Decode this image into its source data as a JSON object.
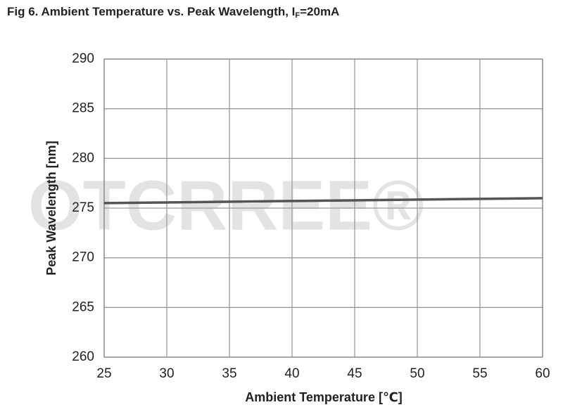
{
  "chart_data": {
    "type": "line",
    "title": [
      "Fig 6. Ambient Temperature vs. Peak Wavelength, I",
      "F",
      "=20mA"
    ],
    "watermark": "OTCRREE®",
    "xlabel": "Ambient Temperature [℃]",
    "ylabel": "Peak Wavelength [nm]",
    "x": [
      25,
      60
    ],
    "series": [
      {
        "name": "Peak Wavelength",
        "color": "#555555",
        "values": [
          275.5,
          276.0
        ]
      }
    ],
    "xlim": [
      25,
      60
    ],
    "xticks": [
      25,
      30,
      35,
      40,
      45,
      50,
      55,
      60
    ],
    "ylim": [
      260,
      290
    ],
    "yticks": [
      260,
      265,
      270,
      275,
      280,
      285,
      290
    ],
    "grid": true
  }
}
